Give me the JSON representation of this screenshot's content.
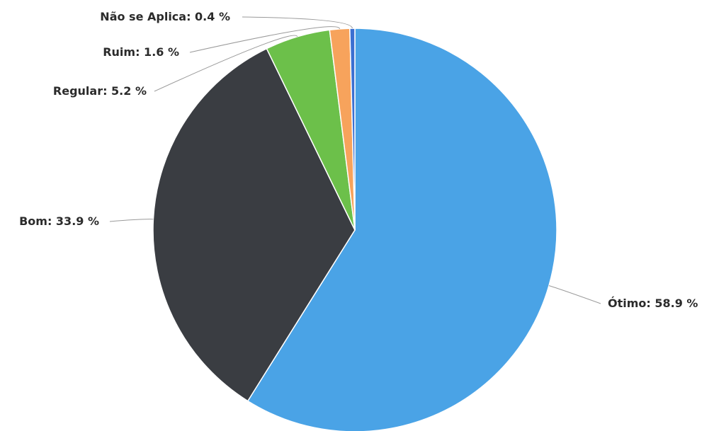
{
  "chart_data": {
    "type": "pie",
    "slices": [
      {
        "name": "Ótimo",
        "value": 58.9,
        "label": "Ótimo: 58.9 %",
        "color": "#4aa3e6"
      },
      {
        "name": "Bom",
        "value": 33.9,
        "label": "Bom: 33.9 %",
        "color": "#3a3d42"
      },
      {
        "name": "Regular",
        "value": 5.2,
        "label": "Regular: 5.2 %",
        "color": "#6cc04a"
      },
      {
        "name": "Ruim",
        "value": 1.6,
        "label": "Ruim: 1.6 %",
        "color": "#f7a35c"
      },
      {
        "name": "Não se Aplica",
        "value": 0.4,
        "label": "Não se Aplica: 0.4 %",
        "color": "#3b6fd1"
      }
    ],
    "unit": "%",
    "start_angle": "12 o'clock",
    "direction": "clockwise",
    "legend": "none",
    "data_labels": "outside with connector lines"
  }
}
